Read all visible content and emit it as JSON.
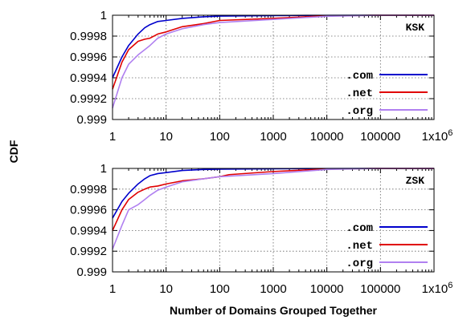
{
  "figure": {
    "ylabel": "CDF",
    "xlabel": "Number of Domains Grouped Together"
  },
  "chart_data": [
    {
      "type": "line",
      "tag": "KSK",
      "x_scale": "log",
      "xlim": [
        1,
        1000000
      ],
      "ylim": [
        0.999,
        1
      ],
      "grid": true,
      "legend_position": "bottom-right",
      "x_ticks": [
        "1",
        "10",
        "100",
        "1000",
        "10000",
        "100000",
        "1x10^6"
      ],
      "x_tick_values": [
        1,
        10,
        100,
        1000,
        10000,
        100000,
        1000000
      ],
      "y_ticks": [
        "0.999",
        "0.9992",
        "0.9994",
        "0.9996",
        "0.9998",
        "1"
      ],
      "y_tick_values": [
        0.999,
        0.9992,
        0.9994,
        0.9996,
        0.9998,
        1
      ],
      "series": [
        {
          "name": ".com",
          "color": "#0000cc",
          "points": [
            [
              1,
              0.9994
            ],
            [
              1.5,
              0.9996
            ],
            [
              2,
              0.99971
            ],
            [
              3,
              0.99982
            ],
            [
              4,
              0.99988
            ],
            [
              5,
              0.99991
            ],
            [
              7,
              0.99994
            ],
            [
              10,
              0.99995
            ],
            [
              20,
              0.99997
            ],
            [
              50,
              0.999985
            ],
            [
              100,
              0.999992
            ],
            [
              1000,
              0.999997
            ],
            [
              10000,
              0.999999
            ],
            [
              100000,
              1.0
            ],
            [
              1000000,
              1.0
            ]
          ]
        },
        {
          "name": ".net",
          "color": "#e00000",
          "points": [
            [
              1,
              0.99929
            ],
            [
              1.5,
              0.99955
            ],
            [
              2,
              0.99967
            ],
            [
              3,
              0.99975
            ],
            [
              4,
              0.99977
            ],
            [
              5,
              0.99978
            ],
            [
              7,
              0.99982
            ],
            [
              10,
              0.99984
            ],
            [
              20,
              0.99989
            ],
            [
              50,
              0.99992
            ],
            [
              100,
              0.99995
            ],
            [
              1000,
              0.99997
            ],
            [
              10000,
              0.999995
            ],
            [
              100000,
              1.0
            ],
            [
              1000000,
              1.0
            ]
          ]
        },
        {
          "name": ".org",
          "color": "#b080f0",
          "points": [
            [
              1,
              0.99911
            ],
            [
              1.5,
              0.9994
            ],
            [
              2,
              0.99953
            ],
            [
              3,
              0.99962
            ],
            [
              4,
              0.99967
            ],
            [
              5,
              0.99971
            ],
            [
              7,
              0.99978
            ],
            [
              10,
              0.99982
            ],
            [
              20,
              0.99987
            ],
            [
              50,
              0.99991
            ],
            [
              100,
              0.99993
            ],
            [
              1000,
              0.99996
            ],
            [
              10000,
              0.99999
            ],
            [
              100000,
              1.0
            ],
            [
              1000000,
              1.0
            ]
          ]
        }
      ]
    },
    {
      "type": "line",
      "tag": "ZSK",
      "x_scale": "log",
      "xlim": [
        1,
        1000000
      ],
      "ylim": [
        0.999,
        1
      ],
      "grid": true,
      "legend_position": "bottom-right",
      "x_ticks": [
        "1",
        "10",
        "100",
        "1000",
        "10000",
        "100000",
        "1x10^6"
      ],
      "x_tick_values": [
        1,
        10,
        100,
        1000,
        10000,
        100000,
        1000000
      ],
      "y_ticks": [
        "0.999",
        "0.9992",
        "0.9994",
        "0.9996",
        "0.9998",
        "1"
      ],
      "y_tick_values": [
        0.999,
        0.9992,
        0.9994,
        0.9996,
        0.9998,
        1
      ],
      "series": [
        {
          "name": ".com",
          "color": "#0000cc",
          "points": [
            [
              1,
              0.99952
            ],
            [
              1.5,
              0.99968
            ],
            [
              2,
              0.99976
            ],
            [
              3,
              0.99985
            ],
            [
              4,
              0.9999
            ],
            [
              5,
              0.99993
            ],
            [
              7,
              0.99995
            ],
            [
              10,
              0.99996
            ],
            [
              20,
              0.99998
            ],
            [
              50,
              0.99999
            ],
            [
              100,
              0.999993
            ],
            [
              1000,
              0.999997
            ],
            [
              10000,
              0.999999
            ],
            [
              100000,
              1.0
            ],
            [
              1000000,
              1.0
            ]
          ]
        },
        {
          "name": ".net",
          "color": "#e00000",
          "points": [
            [
              1,
              0.9994
            ],
            [
              1.5,
              0.9996
            ],
            [
              2,
              0.9997
            ],
            [
              3,
              0.99977
            ],
            [
              4,
              0.9998
            ],
            [
              5,
              0.99982
            ],
            [
              7,
              0.99983
            ],
            [
              10,
              0.99985
            ],
            [
              20,
              0.99988
            ],
            [
              50,
              0.9999
            ],
            [
              100,
              0.99992
            ],
            [
              150,
              0.99994
            ],
            [
              1000,
              0.99997
            ],
            [
              10000,
              0.999995
            ],
            [
              100000,
              1.0
            ],
            [
              1000000,
              1.0
            ]
          ]
        },
        {
          "name": ".org",
          "color": "#b080f0",
          "points": [
            [
              1,
              0.99922
            ],
            [
              1.5,
              0.99945
            ],
            [
              2,
              0.9996
            ],
            [
              3,
              0.99965
            ],
            [
              4,
              0.9997
            ],
            [
              5,
              0.99974
            ],
            [
              7,
              0.99979
            ],
            [
              10,
              0.99982
            ],
            [
              20,
              0.99987
            ],
            [
              50,
              0.9999
            ],
            [
              100,
              0.99992
            ],
            [
              1000,
              0.99995
            ],
            [
              10000,
              0.99999
            ],
            [
              100000,
              1.0
            ],
            [
              1000000,
              1.0
            ]
          ]
        }
      ]
    }
  ]
}
